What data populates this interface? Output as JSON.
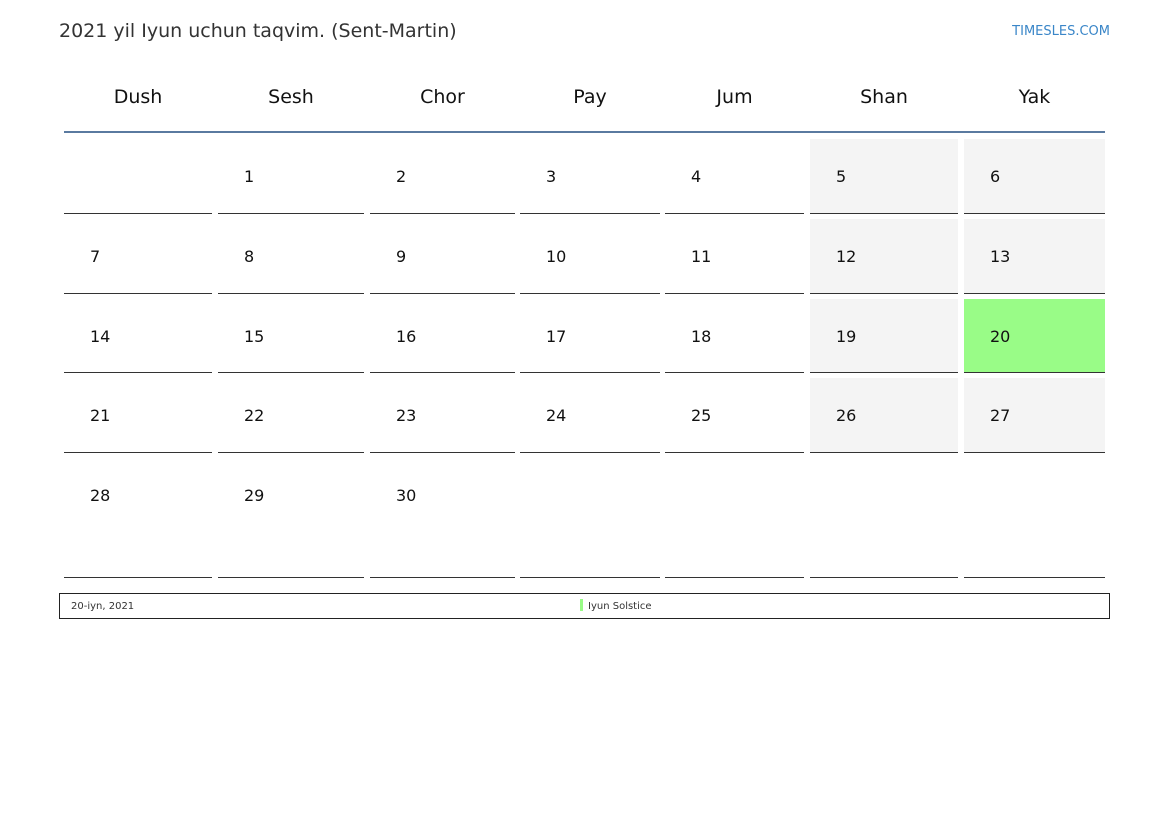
{
  "title": "2021 yil Iyun uchun taqvim. (Sent-Martin)",
  "brand": "TIMESLES.COM",
  "weekdays": [
    "Dush",
    "Sesh",
    "Chor",
    "Pay",
    "Jum",
    "Shan",
    "Yak"
  ],
  "weeks": [
    [
      "",
      "1",
      "2",
      "3",
      "4",
      "5",
      "6"
    ],
    [
      "7",
      "8",
      "9",
      "10",
      "11",
      "12",
      "13"
    ],
    [
      "14",
      "15",
      "16",
      "17",
      "18",
      "19",
      "20"
    ],
    [
      "21",
      "22",
      "23",
      "24",
      "25",
      "26",
      "27"
    ],
    [
      "28",
      "29",
      "30",
      "",
      "",
      "",
      ""
    ]
  ],
  "highlighted_day": "20",
  "highlight_color": "#99fc87",
  "weekend_color": "#f4f4f4",
  "footer": {
    "date": "20-iyn, 2021",
    "event": "Iyun Solstice"
  }
}
